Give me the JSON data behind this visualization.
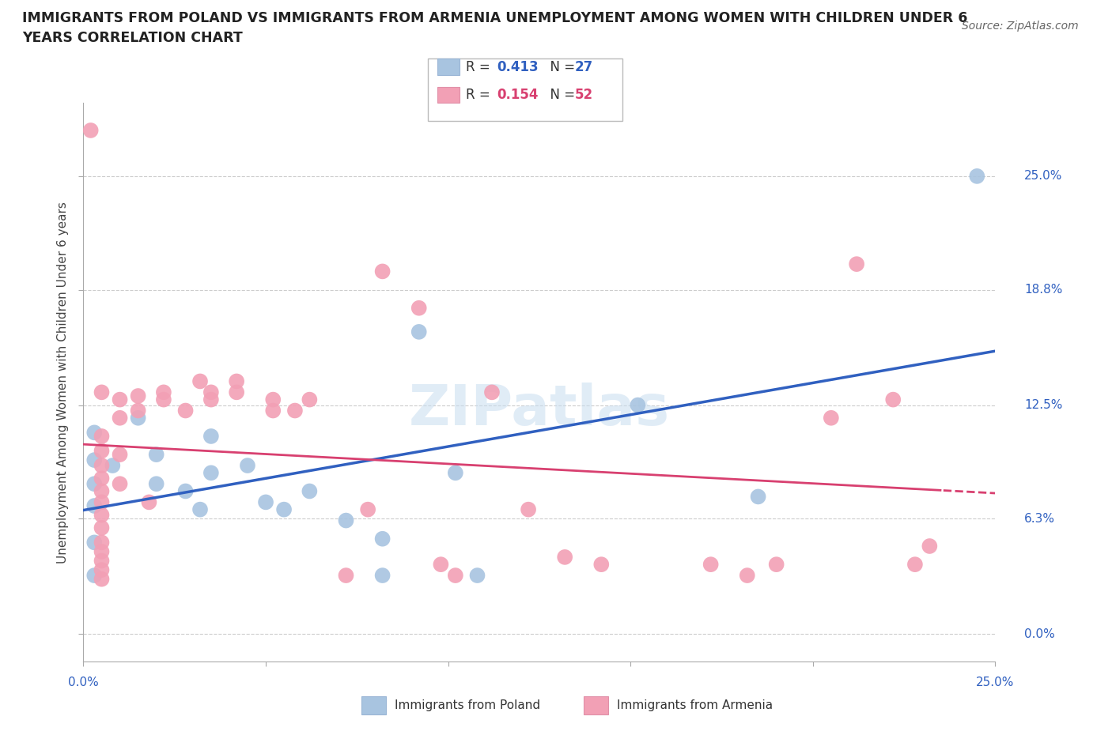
{
  "title_line1": "IMMIGRANTS FROM POLAND VS IMMIGRANTS FROM ARMENIA UNEMPLOYMENT AMONG WOMEN WITH CHILDREN UNDER 6",
  "title_line2": "YEARS CORRELATION CHART",
  "source": "Source: ZipAtlas.com",
  "ylabel": "Unemployment Among Women with Children Under 6 years",
  "ytick_values": [
    0.0,
    6.3,
    12.5,
    18.8,
    25.0
  ],
  "ytick_labels": [
    "0.0%",
    "6.3%",
    "12.5%",
    "18.8%",
    "25.0%"
  ],
  "xlim": [
    0.0,
    25.0
  ],
  "ylim": [
    -1.5,
    29.0
  ],
  "legend_r_poland": "0.413",
  "legend_n_poland": "27",
  "legend_r_armenia": "0.154",
  "legend_n_armenia": "52",
  "color_poland": "#a8c4e0",
  "color_armenia": "#f2a0b5",
  "line_color_poland": "#3060c0",
  "line_color_armenia": "#d84070",
  "poland_scatter": [
    [
      0.3,
      11.0
    ],
    [
      0.3,
      9.5
    ],
    [
      0.3,
      8.2
    ],
    [
      0.3,
      7.0
    ],
    [
      0.3,
      5.0
    ],
    [
      0.3,
      3.2
    ],
    [
      0.8,
      9.2
    ],
    [
      1.5,
      11.8
    ],
    [
      2.0,
      9.8
    ],
    [
      2.0,
      8.2
    ],
    [
      2.8,
      7.8
    ],
    [
      3.2,
      6.8
    ],
    [
      3.5,
      10.8
    ],
    [
      3.5,
      8.8
    ],
    [
      4.5,
      9.2
    ],
    [
      5.0,
      7.2
    ],
    [
      5.5,
      6.8
    ],
    [
      6.2,
      7.8
    ],
    [
      7.2,
      6.2
    ],
    [
      8.2,
      5.2
    ],
    [
      8.2,
      3.2
    ],
    [
      9.2,
      16.5
    ],
    [
      10.2,
      8.8
    ],
    [
      10.8,
      3.2
    ],
    [
      15.2,
      12.5
    ],
    [
      18.5,
      7.5
    ],
    [
      24.5,
      25.0
    ]
  ],
  "armenia_scatter": [
    [
      0.2,
      27.5
    ],
    [
      0.5,
      13.2
    ],
    [
      0.5,
      10.8
    ],
    [
      0.5,
      10.0
    ],
    [
      0.5,
      9.2
    ],
    [
      0.5,
      8.5
    ],
    [
      0.5,
      7.8
    ],
    [
      0.5,
      7.2
    ],
    [
      0.5,
      6.5
    ],
    [
      0.5,
      5.8
    ],
    [
      0.5,
      5.0
    ],
    [
      0.5,
      4.5
    ],
    [
      0.5,
      4.0
    ],
    [
      0.5,
      3.5
    ],
    [
      0.5,
      3.0
    ],
    [
      1.0,
      12.8
    ],
    [
      1.0,
      11.8
    ],
    [
      1.0,
      9.8
    ],
    [
      1.0,
      8.2
    ],
    [
      1.5,
      13.0
    ],
    [
      1.5,
      12.2
    ],
    [
      1.8,
      7.2
    ],
    [
      2.2,
      13.2
    ],
    [
      2.2,
      12.8
    ],
    [
      2.8,
      12.2
    ],
    [
      3.2,
      13.8
    ],
    [
      3.5,
      13.2
    ],
    [
      3.5,
      12.8
    ],
    [
      4.2,
      13.8
    ],
    [
      4.2,
      13.2
    ],
    [
      5.2,
      12.8
    ],
    [
      5.2,
      12.2
    ],
    [
      5.8,
      12.2
    ],
    [
      6.2,
      12.8
    ],
    [
      7.2,
      3.2
    ],
    [
      7.8,
      6.8
    ],
    [
      8.2,
      19.8
    ],
    [
      9.2,
      17.8
    ],
    [
      9.8,
      3.8
    ],
    [
      10.2,
      3.2
    ],
    [
      11.2,
      13.2
    ],
    [
      12.2,
      6.8
    ],
    [
      13.2,
      4.2
    ],
    [
      14.2,
      3.8
    ],
    [
      17.2,
      3.8
    ],
    [
      18.2,
      3.2
    ],
    [
      19.0,
      3.8
    ],
    [
      20.5,
      11.8
    ],
    [
      21.2,
      20.2
    ],
    [
      22.2,
      12.8
    ],
    [
      22.8,
      3.8
    ],
    [
      23.2,
      4.8
    ]
  ]
}
